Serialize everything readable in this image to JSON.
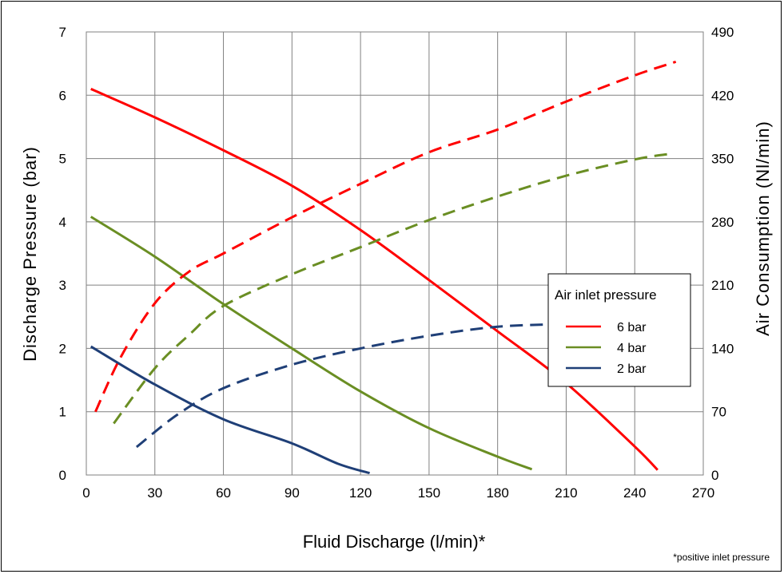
{
  "chart_data": {
    "type": "line",
    "title": "",
    "xlabel": "Fluid Discharge (l/min)*",
    "ylabel_left": "Discharge Pressure (bar)",
    "ylabel_right": "Air Consumption (Nl/min)",
    "xlim": [
      0,
      270
    ],
    "ylim_left": [
      0,
      7
    ],
    "ylim_right": [
      0,
      490
    ],
    "x_ticks": [
      "0",
      "30",
      "60",
      "90",
      "120",
      "150",
      "180",
      "210",
      "240",
      "270"
    ],
    "y_left_ticks": [
      "0",
      "1",
      "2",
      "3",
      "4",
      "5",
      "6",
      "7"
    ],
    "y_right_ticks": [
      "0",
      "70",
      "140",
      "210",
      "280",
      "350",
      "420",
      "490"
    ],
    "grid": true,
    "legend": {
      "title": "Air inlet pressure",
      "placement": "right"
    },
    "footnote": "*positive inlet pressure",
    "series": [
      {
        "name": "6 bar",
        "color": "#ff0000",
        "axis": "left",
        "style": "solid",
        "points": [
          [
            2,
            6.1
          ],
          [
            30,
            5.65
          ],
          [
            60,
            5.13
          ],
          [
            90,
            4.57
          ],
          [
            120,
            3.87
          ],
          [
            150,
            3.08
          ],
          [
            180,
            2.27
          ],
          [
            210,
            1.45
          ],
          [
            240,
            0.45
          ],
          [
            250,
            0.08
          ]
        ]
      },
      {
        "name": "4 bar",
        "color": "#6a8e23",
        "axis": "left",
        "style": "solid",
        "points": [
          [
            2,
            4.08
          ],
          [
            30,
            3.45
          ],
          [
            60,
            2.7
          ],
          [
            90,
            2.0
          ],
          [
            120,
            1.32
          ],
          [
            150,
            0.74
          ],
          [
            180,
            0.29
          ],
          [
            195,
            0.09
          ]
        ]
      },
      {
        "name": "2 bar",
        "color": "#1f3f77",
        "axis": "left",
        "style": "solid",
        "points": [
          [
            2,
            2.03
          ],
          [
            30,
            1.43
          ],
          [
            60,
            0.88
          ],
          [
            90,
            0.5
          ],
          [
            110,
            0.18
          ],
          [
            124,
            0.03
          ]
        ]
      },
      {
        "name": "6 bar",
        "color": "#ff0000",
        "axis": "right",
        "style": "dashed",
        "points": [
          [
            4,
            70
          ],
          [
            15,
            130
          ],
          [
            30,
            190
          ],
          [
            45,
            225
          ],
          [
            60,
            245
          ],
          [
            90,
            285
          ],
          [
            120,
            322
          ],
          [
            150,
            357
          ],
          [
            180,
            382
          ],
          [
            210,
            413
          ],
          [
            240,
            442
          ],
          [
            258,
            457
          ]
        ]
      },
      {
        "name": "4 bar",
        "color": "#6a8e23",
        "axis": "right",
        "style": "dashed",
        "points": [
          [
            12,
            57
          ],
          [
            30,
            118
          ],
          [
            45,
            155
          ],
          [
            60,
            187
          ],
          [
            90,
            222
          ],
          [
            120,
            252
          ],
          [
            150,
            282
          ],
          [
            180,
            308
          ],
          [
            210,
            331
          ],
          [
            240,
            349
          ],
          [
            255,
            355
          ]
        ]
      },
      {
        "name": "2 bar",
        "color": "#1f3f77",
        "axis": "right",
        "style": "dashed",
        "points": [
          [
            22,
            31
          ],
          [
            40,
            67
          ],
          [
            60,
            96
          ],
          [
            90,
            122
          ],
          [
            120,
            140
          ],
          [
            150,
            154
          ],
          [
            180,
            164
          ],
          [
            210,
            167
          ]
        ]
      }
    ]
  }
}
